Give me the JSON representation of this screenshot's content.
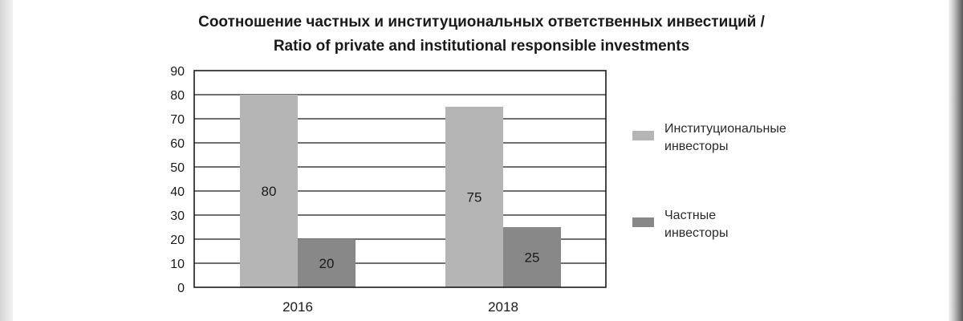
{
  "chart_data": {
    "type": "bar",
    "title": "Соотношение частных и институциональных ответственных инвестиций /",
    "subtitle": "Ratio of private and institutional responsible investments",
    "xlabel": "",
    "ylabel": "",
    "categories": [
      "2016",
      "2018"
    ],
    "series": [
      {
        "name": [
          "Институциональные",
          "инвесторы"
        ],
        "values": [
          80,
          75
        ],
        "color": "#b5b5b5"
      },
      {
        "name": [
          "Частные",
          "инвесторы"
        ],
        "values": [
          20,
          25
        ],
        "color": "#888888"
      }
    ],
    "ylim": [
      0,
      90
    ],
    "yticks": [
      0,
      10,
      20,
      30,
      40,
      50,
      60,
      70,
      80,
      90
    ],
    "grid": true,
    "legend": "right"
  }
}
